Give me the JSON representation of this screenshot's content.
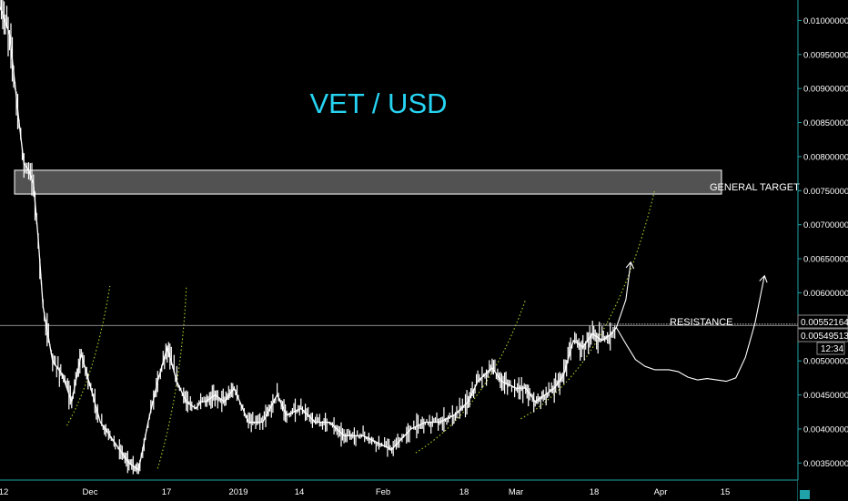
{
  "chart_data": {
    "type": "candlestick",
    "title": "VET / USD",
    "ylim": [
      0.00325,
      0.0103
    ],
    "xlim": [
      "2018-11-12",
      "2019-04-28"
    ],
    "y_ticks": [
      "0.01000000",
      "0.00950000",
      "0.00900000",
      "0.00850000",
      "0.00800000",
      "0.00750000",
      "0.00700000",
      "0.00650000",
      "0.00600000",
      "0.00500000",
      "0.00450000",
      "0.00400000",
      "0.00350000"
    ],
    "x_ticks": [
      "12",
      "Dec",
      "17",
      "2019",
      "14",
      "Feb",
      "18",
      "Mar",
      "18",
      "Apr",
      "15"
    ],
    "price_labels": [
      {
        "text": "0.00552164",
        "value": 0.00552164
      },
      {
        "text": "0.00549513",
        "value": 0.00549513
      }
    ],
    "countdown": "12:34",
    "close_series": {
      "dates": [
        "2018-11-12",
        "2018-11-14",
        "2018-11-16",
        "2018-11-17",
        "2018-11-18",
        "2018-11-19",
        "2018-11-20",
        "2018-11-21",
        "2018-11-23",
        "2018-11-25",
        "2018-11-27",
        "2018-11-29",
        "2018-12-01",
        "2018-12-03",
        "2018-12-05",
        "2018-12-07",
        "2018-12-09",
        "2018-12-11",
        "2018-12-13",
        "2018-12-15",
        "2018-12-17",
        "2018-12-19",
        "2018-12-21",
        "2018-12-23",
        "2018-12-24",
        "2018-12-25",
        "2018-12-27",
        "2018-12-29",
        "2018-12-31",
        "2019-01-03",
        "2019-01-06",
        "2019-01-09",
        "2019-01-11",
        "2019-01-14",
        "2019-01-17",
        "2019-01-20",
        "2019-01-23",
        "2019-01-27",
        "2019-01-30",
        "2019-02-02",
        "2019-02-06",
        "2019-02-09",
        "2019-02-12",
        "2019-02-15",
        "2019-02-18",
        "2019-02-20",
        "2019-02-23",
        "2019-02-25",
        "2019-02-28",
        "2019-03-02",
        "2019-03-04",
        "2019-03-06",
        "2019-03-08",
        "2019-03-10",
        "2019-03-12",
        "2019-03-14",
        "2019-03-16",
        "2019-03-18",
        "2019-03-20",
        "2019-03-21"
      ],
      "values": [
        0.0102,
        0.0098,
        0.0085,
        0.0079,
        0.0078,
        0.0076,
        0.0068,
        0.0058,
        0.005,
        0.0048,
        0.0044,
        0.0051,
        0.0046,
        0.0041,
        0.0039,
        0.0037,
        0.0035,
        0.0034,
        0.0041,
        0.0047,
        0.0052,
        0.0047,
        0.0044,
        0.0043,
        0.0044,
        0.0044,
        0.0045,
        0.0044,
        0.0046,
        0.0041,
        0.0041,
        0.0045,
        0.0042,
        0.0043,
        0.0041,
        0.0041,
        0.0039,
        0.0039,
        0.0038,
        0.0037,
        0.004,
        0.0041,
        0.0041,
        0.0042,
        0.0044,
        0.0047,
        0.0049,
        0.0047,
        0.0046,
        0.0046,
        0.0044,
        0.0045,
        0.0046,
        0.0048,
        0.0053,
        0.0052,
        0.0054,
        0.0053,
        0.0054,
        0.00549
      ]
    },
    "target_zone": {
      "label": "GENERAL TARGET",
      "low": 0.00745,
      "high": 0.0078,
      "start": "2018-11-12",
      "end": "2019-04-12"
    },
    "resistance": {
      "label": "RESISTANCE",
      "value": 0.00552
    },
    "projected_paths": [
      {
        "dates": [
          "2019-03-21",
          "2019-03-23",
          "2019-03-25",
          "2019-03-27",
          "2019-03-29",
          "2019-04-01",
          "2019-04-03",
          "2019-04-05",
          "2019-04-07",
          "2019-04-09",
          "2019-04-11",
          "2019-04-13",
          "2019-04-15",
          "2019-04-17",
          "2019-04-19",
          "2019-04-21"
        ],
        "values": [
          0.00549,
          0.00525,
          0.00502,
          0.00492,
          0.00487,
          0.00487,
          0.00484,
          0.00476,
          0.00472,
          0.00474,
          0.00472,
          0.0047,
          0.00475,
          0.00505,
          0.00555,
          0.00625
        ]
      },
      {
        "dates": [
          "2019-03-21",
          "2019-03-23",
          "2019-03-24"
        ],
        "values": [
          0.00549,
          0.0059,
          0.00645
        ]
      }
    ],
    "growth_curves": [
      {
        "dates": [
          "2018-11-26",
          "2018-12-02",
          "2018-12-05"
        ],
        "values": [
          0.00405,
          0.0048,
          0.0061
        ]
      },
      {
        "dates": [
          "2018-12-15",
          "2018-12-20",
          "2018-12-21"
        ],
        "values": [
          0.00342,
          0.0046,
          0.0061
        ]
      },
      {
        "dates": [
          "2019-02-07",
          "2019-02-22",
          "2019-03-02"
        ],
        "values": [
          0.00365,
          0.0043,
          0.0059
        ]
      },
      {
        "dates": [
          "2019-03-01",
          "2019-03-20",
          "2019-03-29"
        ],
        "values": [
          0.00415,
          0.0049,
          0.0075
        ]
      }
    ],
    "grid": false
  }
}
